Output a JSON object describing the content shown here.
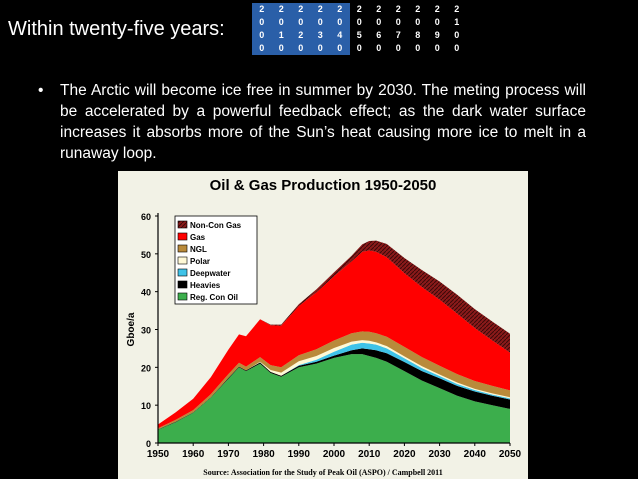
{
  "slide": {
    "heading": "Within twenty-five years:",
    "bullet": "The Arctic will become ice free in summer by 2030. The meting process will be accelerated by a powerful feedback effect; as the dark water surface increases it absorbs more of the Sun’s heat causing more ice to melt in a runaway loop.",
    "bullet_marker": "•"
  },
  "timeline": {
    "highlight_color": "#2a5fa8",
    "columns": [
      {
        "d": [
          "2",
          "0",
          "0",
          "0"
        ],
        "done": true
      },
      {
        "d": [
          "2",
          "0",
          "1",
          "0"
        ],
        "done": true
      },
      {
        "d": [
          "2",
          "0",
          "2",
          "0"
        ],
        "done": true
      },
      {
        "d": [
          "2",
          "0",
          "3",
          "0"
        ],
        "done": true
      },
      {
        "d": [
          "2",
          "0",
          "4",
          "0"
        ],
        "done": true
      },
      {
        "d": [
          "2",
          "0",
          "5",
          "0"
        ],
        "done": false
      },
      {
        "d": [
          "2",
          "0",
          "6",
          "0"
        ],
        "done": false
      },
      {
        "d": [
          "2",
          "0",
          "7",
          "0"
        ],
        "done": false
      },
      {
        "d": [
          "2",
          "0",
          "8",
          "0"
        ],
        "done": false
      },
      {
        "d": [
          "2",
          "0",
          "9",
          "0"
        ],
        "done": false
      },
      {
        "d": [
          "2",
          "1",
          "0",
          "0"
        ],
        "done": false
      }
    ]
  },
  "chart_data": {
    "type": "area",
    "title": "Oil & Gas Production 1950-2050",
    "ylabel": "Gboe/a",
    "xlabel": "",
    "source": "Source: Association for the Study of Peak Oil (ASPO) / Campbell 2011",
    "xlim": [
      1950,
      2050
    ],
    "ylim": [
      0,
      60
    ],
    "xticks": [
      "1950",
      "1960",
      "1970",
      "1980",
      "1990",
      "2000",
      "2010",
      "2020",
      "2030",
      "2040",
      "2050"
    ],
    "yticks": [
      "0",
      "10",
      "20",
      "30",
      "40",
      "50",
      "60"
    ],
    "legend_position": "top-left",
    "x": [
      1950,
      1955,
      1960,
      1965,
      1970,
      1973,
      1975,
      1979,
      1982,
      1985,
      1990,
      1995,
      2000,
      2005,
      2008,
      2010,
      2012,
      2015,
      2020,
      2025,
      2030,
      2035,
      2040,
      2045,
      2050
    ],
    "series": [
      {
        "name": "Reg. Con Oil",
        "color": "#3cae4c",
        "values": [
          3.5,
          5.5,
          8,
          12,
          17,
          20,
          19,
          21,
          18.5,
          17.5,
          20,
          21,
          22.5,
          23.5,
          23.5,
          23,
          22.5,
          21.5,
          19,
          16.5,
          14.5,
          12.5,
          11,
          10,
          9
        ]
      },
      {
        "name": "Heavies",
        "color": "#000000",
        "values": [
          0.1,
          0.1,
          0.1,
          0.1,
          0.2,
          0.2,
          0.2,
          0.3,
          0.3,
          0.3,
          0.4,
          0.5,
          0.6,
          1,
          1.5,
          1.8,
          2,
          2.2,
          2.4,
          2.5,
          2.6,
          2.6,
          2.6,
          2.5,
          2.5
        ]
      },
      {
        "name": "Deepwater",
        "color": "#3fc3e8",
        "values": [
          0,
          0,
          0,
          0,
          0,
          0,
          0,
          0,
          0,
          0,
          0.2,
          0.5,
          1,
          1.5,
          1.5,
          1.5,
          1.5,
          1.3,
          1,
          0.8,
          0.6,
          0.5,
          0.4,
          0.3,
          0.3
        ]
      },
      {
        "name": "Polar",
        "color": "#fff9d6",
        "values": [
          0,
          0,
          0,
          0,
          0,
          0,
          0,
          0.2,
          0.5,
          0.8,
          1,
          1,
          1,
          0.8,
          0.7,
          0.7,
          0.6,
          0.6,
          0.5,
          0.5,
          0.4,
          0.4,
          0.3,
          0.3,
          0.3
        ]
      },
      {
        "name": "NGL",
        "color": "#b98a3a",
        "values": [
          0.3,
          0.5,
          0.6,
          0.8,
          1,
          1,
          1,
          1.2,
          1.3,
          1.4,
          1.6,
          1.8,
          2,
          2.2,
          2.3,
          2.4,
          2.4,
          2.5,
          2.5,
          2.4,
          2.3,
          2.2,
          2.1,
          2,
          1.8
        ]
      },
      {
        "name": "Gas",
        "color": "#ff0000",
        "values": [
          1,
          2,
          3,
          4.5,
          6.5,
          7.5,
          8,
          10,
          10.5,
          11,
          13,
          15,
          17,
          19,
          21,
          21.5,
          21.5,
          21,
          19.5,
          18.5,
          17.5,
          16,
          14,
          12,
          10
        ]
      },
      {
        "name": "Non-Con Gas",
        "color": "#8b1a1a",
        "values": [
          0,
          0,
          0,
          0,
          0,
          0,
          0,
          0,
          0.2,
          0.3,
          0.5,
          0.8,
          1,
          1.5,
          2,
          2.5,
          3,
          3.5,
          4,
          4.5,
          4.8,
          5,
          5,
          5,
          5
        ]
      }
    ],
    "legend_order": [
      "Non-Con Gas",
      "Gas",
      "NGL",
      "Polar",
      "Deepwater",
      "Heavies",
      "Reg. Con Oil"
    ]
  }
}
